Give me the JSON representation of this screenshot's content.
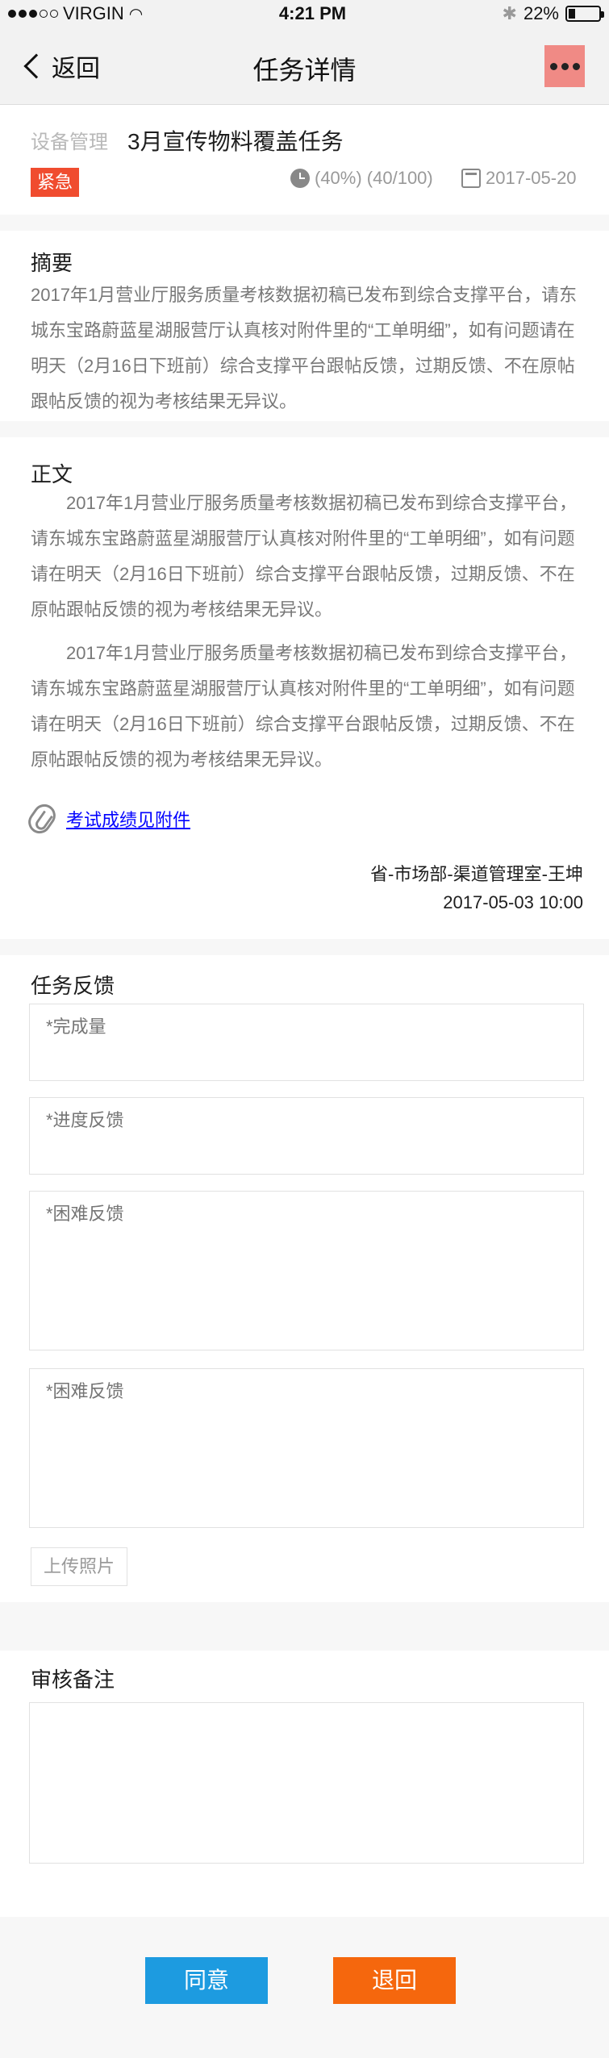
{
  "status_bar": {
    "carrier": "VIRGIN",
    "time": "4:21 PM",
    "battery": "22%",
    "battery_level": 0.22
  },
  "nav": {
    "back_label": "返回",
    "title": "任务详情",
    "more_icon": "more-dots-icon"
  },
  "task": {
    "category": "设备管理",
    "title": "3月宣传物料覆盖任务",
    "urgent_badge": "紧急",
    "progress": "(40%) (40/100)",
    "date": "2017-05-20"
  },
  "summary": {
    "title": "摘要",
    "text": "2017年1月营业厅服务质量考核数据初稿已发布到综合支撑平台，请东城东宝路蔚蓝星湖服营厅认真核对附件里的“工单明细”，如有问题请在明天（2月16日下班前）综合支撑平台跟帖反馈，过期反馈、不在原帖跟帖反馈的视为考核结果无异议。"
  },
  "body": {
    "title": "正文",
    "paragraphs": [
      "2017年1月营业厅服务质量考核数据初稿已发布到综合支撑平台，请东城东宝路蔚蓝星湖服营厅认真核对附件里的“工单明细”，如有问题请在明天（2月16日下班前）综合支撑平台跟帖反馈，过期反馈、不在原帖跟帖反馈的视为考核结果无异议。",
      "2017年1月营业厅服务质量考核数据初稿已发布到综合支撑平台，请东城东宝路蔚蓝星湖服营厅认真核对附件里的“工单明细”，如有问题请在明天（2月16日下班前）综合支撑平台跟帖反馈，过期反馈、不在原帖跟帖反馈的视为考核结果无异议。"
    ],
    "attachment_label": "考试成绩见附件",
    "author": "省-市场部-渠道管理室-王坤",
    "datetime": "2017-05-03  10:00"
  },
  "feedback": {
    "title": "任务反馈",
    "placeholders": [
      "*完成量",
      "*进度反馈",
      "*困难反馈",
      "*困难反馈"
    ],
    "upload_label": "上传照片"
  },
  "review": {
    "title": "审核备注"
  },
  "actions": {
    "agree_label": "同意",
    "reject_label": "退回"
  },
  "colors": {
    "page_gap": "#f7f7f7",
    "text_dark": "#1e1e1e",
    "text_gray": "#787878",
    "link": "#0000ff",
    "border": "#e1e1e1",
    "upload_text": "#999999",
    "agree": "#1d9be0",
    "reject": "#f5670d",
    "urgent": "#f04c2f"
  }
}
